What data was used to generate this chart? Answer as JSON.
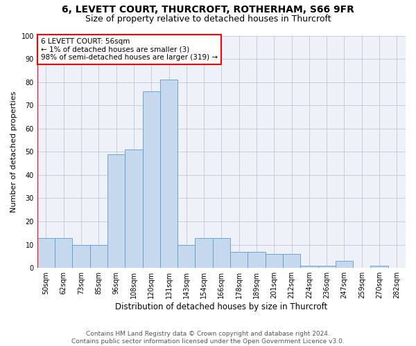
{
  "title1": "6, LEVETT COURT, THURCROFT, ROTHERHAM, S66 9FR",
  "title2": "Size of property relative to detached houses in Thurcroft",
  "xlabel": "Distribution of detached houses by size in Thurcroft",
  "ylabel": "Number of detached properties",
  "categories": [
    "50sqm",
    "62sqm",
    "73sqm",
    "85sqm",
    "96sqm",
    "108sqm",
    "120sqm",
    "131sqm",
    "143sqm",
    "154sqm",
    "166sqm",
    "178sqm",
    "189sqm",
    "201sqm",
    "212sqm",
    "224sqm",
    "236sqm",
    "247sqm",
    "259sqm",
    "270sqm",
    "282sqm"
  ],
  "values": [
    13,
    13,
    10,
    10,
    49,
    51,
    76,
    81,
    10,
    13,
    13,
    7,
    7,
    6,
    6,
    1,
    1,
    3,
    0,
    1,
    0
  ],
  "bar_color": "#c5d8ed",
  "bar_edge_color": "#5b9bd5",
  "box_color": "white",
  "box_edge_color": "red",
  "vline_color": "red",
  "grid_color": "#c0c8d8",
  "bg_color": "#eef2f8",
  "ylim": [
    0,
    100
  ],
  "yticks": [
    0,
    10,
    20,
    30,
    40,
    50,
    60,
    70,
    80,
    90,
    100
  ],
  "annotation_box_text": "6 LEVETT COURT: 56sqm\n← 1% of detached houses are smaller (3)\n98% of semi-detached houses are larger (319) →",
  "footer": "Contains HM Land Registry data © Crown copyright and database right 2024.\nContains public sector information licensed under the Open Government Licence v3.0.",
  "title_fontsize": 10,
  "subtitle_fontsize": 9,
  "xlabel_fontsize": 8.5,
  "ylabel_fontsize": 8,
  "tick_fontsize": 7,
  "annot_fontsize": 7.5,
  "footer_fontsize": 6.5
}
